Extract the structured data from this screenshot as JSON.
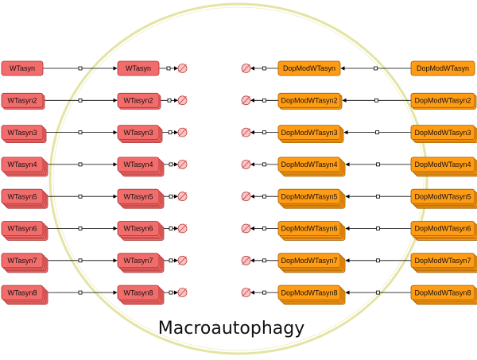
{
  "compartment": {
    "name": "Macroautophagy"
  },
  "colors": {
    "wt_fill": "#f36c6c",
    "wt_stroke": "#a83232",
    "dop_fill": "#ff9c14",
    "dop_stroke": "#9a5a00",
    "compartment_stroke": "#e4e4a6",
    "edge": "#000000",
    "sink_fill": "#f6c6c6",
    "sink_stroke": "#c04040"
  },
  "icons": {
    "sink": "degradation-sink-icon",
    "process": "process-node-icon"
  },
  "wt_rows": [
    {
      "source": "WTasyn",
      "target": "WTasyn",
      "stack": 1
    },
    {
      "source": "WTasyn2",
      "target": "WTasyn2",
      "stack": 2
    },
    {
      "source": "WTasyn3",
      "target": "WTasyn3",
      "stack": 3
    },
    {
      "source": "WTasyn4",
      "target": "WTasyn4",
      "stack": 4
    },
    {
      "source": "WTasyn5",
      "target": "WTasyn5",
      "stack": 5
    },
    {
      "source": "WTasyn6",
      "target": "WTasyn6",
      "stack": 6
    },
    {
      "source": "WTasyn7",
      "target": "WTasyn7",
      "stack": 7
    },
    {
      "source": "WTasyn8",
      "target": "WTasyn8",
      "stack": 8
    }
  ],
  "dop_rows": [
    {
      "source": "DopModWTasyn",
      "target": "DopModWTasyn",
      "stack": 1
    },
    {
      "source": "DopModWTasyn2",
      "target": "DopModWTasyn2",
      "stack": 2
    },
    {
      "source": "DopModWTasyn3",
      "target": "DopModWTasyn3",
      "stack": 3
    },
    {
      "source": "DopModWTasyn4",
      "target": "DopModWTasyn4",
      "stack": 4
    },
    {
      "source": "DopModWTasyn5",
      "target": "DopModWTasyn5",
      "stack": 5
    },
    {
      "source": "DopModWTasyn6",
      "target": "DopModWTasyn6",
      "stack": 6
    },
    {
      "source": "DopModWTasyn7",
      "target": "DopModWTasyn7",
      "stack": 7
    },
    {
      "source": "DopModWTasyn8",
      "target": "DopModWTasyn8",
      "stack": 8
    }
  ]
}
